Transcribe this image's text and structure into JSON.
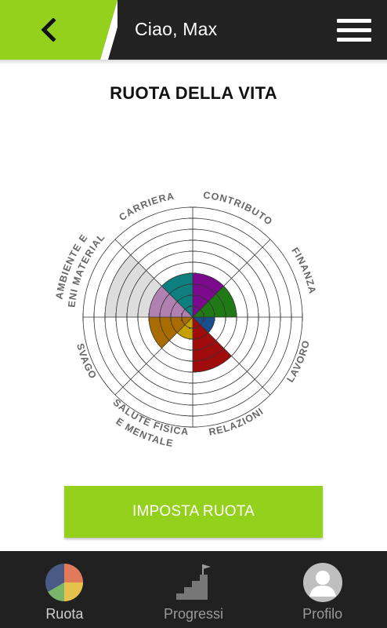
{
  "header": {
    "greeting": "Ciao, Max",
    "accent_color": "#94d11c",
    "back_icon": "chevron-left-icon",
    "menu_icon": "hamburger-menu-icon"
  },
  "page": {
    "title": "RUOTA DELLA VITA"
  },
  "wheel": {
    "rings": 10,
    "segments": [
      {
        "label_lines": [
          "CONTRIBUTO"
        ],
        "value": 4,
        "color": "#7b0a8c"
      },
      {
        "label_lines": [
          "FINANZA"
        ],
        "value": 4,
        "color": "#1f7a16"
      },
      {
        "label_lines": [
          "LAVORO"
        ],
        "value": 2,
        "color": "#1a4d8c"
      },
      {
        "label_lines": [
          "RELAZIONI"
        ],
        "value": 5,
        "color": "#a00c0c"
      },
      {
        "label_lines": [
          "SALUTE FISICA",
          "E MENTALE"
        ],
        "value": 2,
        "color": "#c6a000"
      },
      {
        "label_lines": [
          "SVAGO"
        ],
        "value": 4,
        "color": "#a86c00"
      },
      {
        "label_lines": [
          "AMBIENTE E",
          "BENI MATERIALI"
        ],
        "value": 6,
        "color": "#f9b2f0"
      },
      {
        "label_lines": [
          "CARRIERA"
        ],
        "value": 4,
        "color": "#0e7f7f"
      }
    ],
    "overlay": [
      {
        "segment": 6,
        "value": 8,
        "color": "#dddddd"
      },
      {
        "segment": 6,
        "value": 4,
        "color": "#b080b0"
      }
    ]
  },
  "actions": {
    "setup_label": "IMPOSTA RUOTA"
  },
  "nav": {
    "items": [
      {
        "label": "Ruota",
        "icon": "pie-chart-icon"
      },
      {
        "label": "Progressi",
        "icon": "stairs-flag-icon"
      },
      {
        "label": "Profilo",
        "icon": "user-avatar-icon"
      }
    ]
  }
}
